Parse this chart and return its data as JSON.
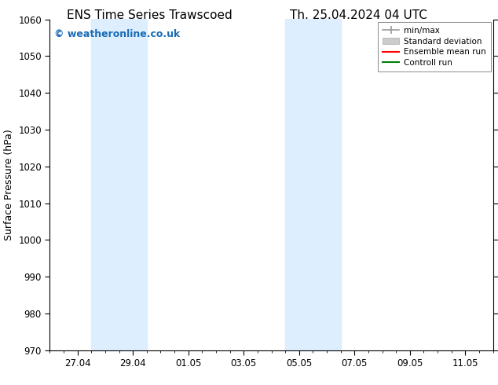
{
  "title_left": "ENS Time Series Trawscoed",
  "title_right": "Th. 25.04.2024 04 UTC",
  "ylabel": "Surface Pressure (hPa)",
  "ylim": [
    970,
    1060
  ],
  "yticks": [
    970,
    980,
    990,
    1000,
    1010,
    1020,
    1030,
    1040,
    1050,
    1060
  ],
  "xtick_labels": [
    "27.04",
    "29.04",
    "01.05",
    "03.05",
    "05.05",
    "07.05",
    "09.05",
    "11.05"
  ],
  "xtick_positions": [
    2,
    4,
    6,
    8,
    10,
    12,
    14,
    16
  ],
  "xlim": [
    1,
    17
  ],
  "shaded_bands": [
    {
      "xmin": 2.5,
      "xmax": 4.5,
      "color": "#ddeeff"
    },
    {
      "xmin": 9.5,
      "xmax": 11.5,
      "color": "#ddeeff"
    }
  ],
  "watermark": "© weatheronline.co.uk",
  "watermark_color": "#1a6bb5",
  "bg_color": "#ffffff",
  "legend_items": [
    {
      "label": "min/max",
      "color": "#999999",
      "lw": 1.2
    },
    {
      "label": "Standard deviation",
      "color": "#cccccc",
      "lw": 6
    },
    {
      "label": "Ensemble mean run",
      "color": "#ff0000",
      "lw": 1.5
    },
    {
      "label": "Controll run",
      "color": "#008000",
      "lw": 1.5
    }
  ],
  "title_fontsize": 11,
  "label_fontsize": 9,
  "tick_fontsize": 8.5
}
